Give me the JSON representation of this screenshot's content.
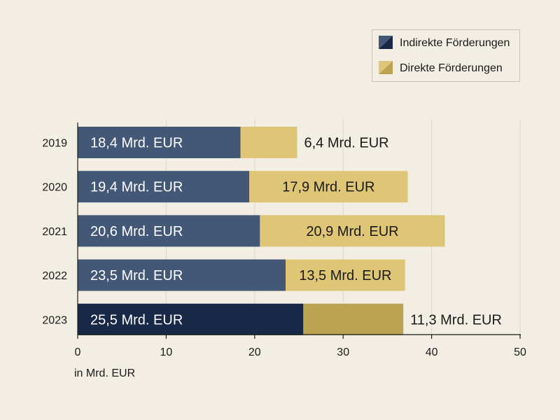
{
  "chart_data": {
    "type": "bar",
    "orientation": "horizontal",
    "stacked": true,
    "categories": [
      "2019",
      "2020",
      "2021",
      "2022",
      "2023"
    ],
    "series": [
      {
        "name": "Indirekte Förderungen",
        "values": [
          18.4,
          19.4,
          20.6,
          23.5,
          25.5
        ],
        "labels": [
          "18,4 Mrd. EUR",
          "19,4 Mrd. EUR",
          "20,6 Mrd. EUR",
          "23,5 Mrd. EUR",
          "25,5 Mrd. EUR"
        ],
        "colors": [
          "#435777",
          "#435777",
          "#435777",
          "#435777",
          "#182947"
        ],
        "label_color": "#ffffff"
      },
      {
        "name": "Direkte Förderungen",
        "values": [
          6.4,
          17.9,
          20.9,
          13.5,
          11.3
        ],
        "labels": [
          "6,4 Mrd. EUR",
          "17,9 Mrd. EUR",
          "20,9 Mrd. EUR",
          "13,5 Mrd. EUR",
          "11,3 Mrd. EUR"
        ],
        "colors": [
          "#dfc676",
          "#dfc676",
          "#dfc676",
          "#dfc676",
          "#bca352"
        ],
        "label_color": "#1a1a1a"
      }
    ],
    "xlim": [
      0,
      50
    ],
    "xticks": [
      "0",
      "10",
      "20",
      "30",
      "40",
      "50"
    ],
    "xlabel": "in Mrd. EUR",
    "grid": true,
    "legend_position": "top-right",
    "legend_swatch_colors": [
      [
        "#182947",
        "#435777"
      ],
      [
        "#bca352",
        "#dfc676"
      ]
    ]
  }
}
